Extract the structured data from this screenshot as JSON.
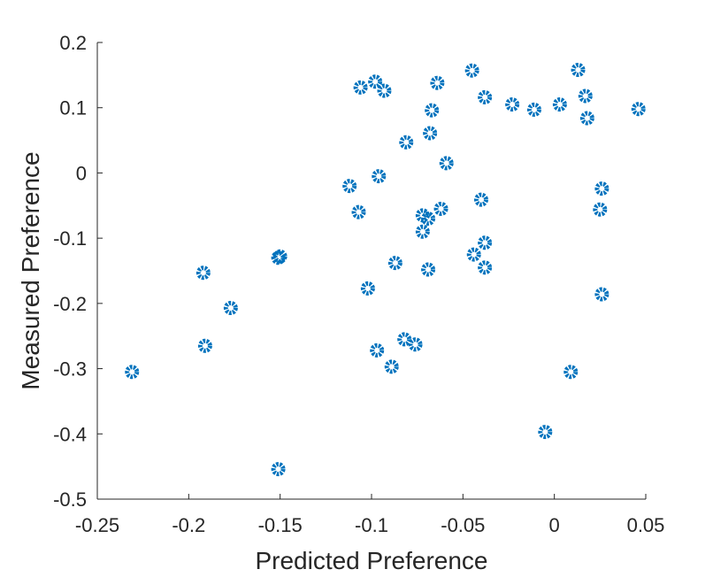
{
  "chart_data": {
    "type": "scatter",
    "xlabel": "Predicted Preference",
    "ylabel": "Measured Preference",
    "xlim": [
      -0.25,
      0.05
    ],
    "ylim": [
      -0.5,
      0.2
    ],
    "x_ticks": [
      -0.25,
      -0.2,
      -0.15,
      -0.1,
      -0.05,
      0,
      0.05
    ],
    "x_tick_labels": [
      "-0.25",
      "-0.2",
      "-0.15",
      "-0.1",
      "-0.05",
      "0",
      "0.05"
    ],
    "y_ticks": [
      -0.5,
      -0.4,
      -0.3,
      -0.2,
      -0.1,
      0,
      0.1,
      0.2
    ],
    "y_tick_labels": [
      "-0.5",
      "-0.4",
      "-0.3",
      "-0.2",
      "-0.1",
      "0",
      "0.1",
      "0.2"
    ],
    "grid": false,
    "marker_color": "#0072BD",
    "points": [
      {
        "x": -0.231,
        "y": -0.305
      },
      {
        "x": -0.192,
        "y": -0.153
      },
      {
        "x": -0.191,
        "y": -0.265
      },
      {
        "x": -0.177,
        "y": -0.207
      },
      {
        "x": -0.151,
        "y": -0.13
      },
      {
        "x": -0.15,
        "y": -0.128
      },
      {
        "x": -0.151,
        "y": -0.454
      },
      {
        "x": -0.112,
        "y": -0.02
      },
      {
        "x": -0.107,
        "y": -0.06
      },
      {
        "x": -0.106,
        "y": 0.131
      },
      {
        "x": -0.102,
        "y": -0.177
      },
      {
        "x": -0.098,
        "y": 0.14
      },
      {
        "x": -0.097,
        "y": -0.272
      },
      {
        "x": -0.096,
        "y": -0.005
      },
      {
        "x": -0.093,
        "y": 0.126
      },
      {
        "x": -0.089,
        "y": -0.297
      },
      {
        "x": -0.087,
        "y": -0.138
      },
      {
        "x": -0.082,
        "y": -0.255
      },
      {
        "x": -0.081,
        "y": 0.047
      },
      {
        "x": -0.076,
        "y": -0.263
      },
      {
        "x": -0.072,
        "y": -0.065
      },
      {
        "x": -0.072,
        "y": -0.09
      },
      {
        "x": -0.069,
        "y": -0.07
      },
      {
        "x": -0.069,
        "y": -0.148
      },
      {
        "x": -0.068,
        "y": 0.061
      },
      {
        "x": -0.067,
        "y": 0.096
      },
      {
        "x": -0.064,
        "y": 0.138
      },
      {
        "x": -0.062,
        "y": -0.055
      },
      {
        "x": -0.059,
        "y": 0.015
      },
      {
        "x": -0.045,
        "y": 0.157
      },
      {
        "x": -0.044,
        "y": -0.125
      },
      {
        "x": -0.04,
        "y": -0.041
      },
      {
        "x": -0.038,
        "y": 0.116
      },
      {
        "x": -0.038,
        "y": -0.107
      },
      {
        "x": -0.038,
        "y": -0.145
      },
      {
        "x": -0.023,
        "y": 0.105
      },
      {
        "x": -0.011,
        "y": 0.097
      },
      {
        "x": -0.005,
        "y": -0.397
      },
      {
        "x": 0.003,
        "y": 0.105
      },
      {
        "x": 0.009,
        "y": -0.305
      },
      {
        "x": 0.013,
        "y": 0.158
      },
      {
        "x": 0.017,
        "y": 0.118
      },
      {
        "x": 0.018,
        "y": 0.084
      },
      {
        "x": 0.025,
        "y": -0.056
      },
      {
        "x": 0.026,
        "y": -0.024
      },
      {
        "x": 0.026,
        "y": -0.186
      },
      {
        "x": 0.046,
        "y": 0.098
      }
    ]
  }
}
